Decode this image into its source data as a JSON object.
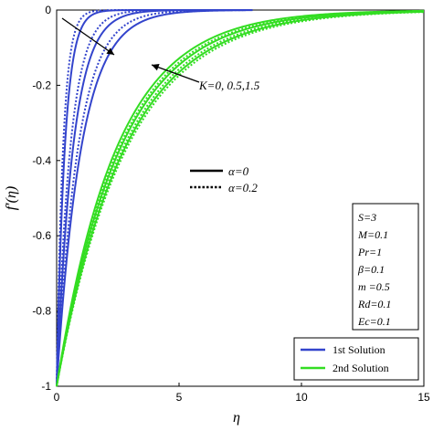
{
  "chart_data": {
    "type": "line",
    "xlabel": "η",
    "ylabel": "f′(η)",
    "xlim": [
      0,
      15
    ],
    "ylim": [
      -1,
      0
    ],
    "xticks": [
      "0",
      "5",
      "10",
      "15"
    ],
    "yticks": [
      "0",
      "-0.2",
      "-0.4",
      "-0.6",
      "-0.8",
      "-1"
    ],
    "grid": false,
    "legend_position": "bottom-right",
    "legend": [
      {
        "label": "1st Solution",
        "color": "#3344cc"
      },
      {
        "label": "2nd Solution",
        "color": "#33dd22"
      }
    ],
    "style_legend": [
      {
        "label": "α=0",
        "dash": "solid"
      },
      {
        "label": "α=0.2",
        "dash": "dotted"
      }
    ],
    "annotation": "K=0, 0.5,1.5",
    "params": [
      "S=3",
      "M=0.1",
      "Pr=1",
      "β=0.1",
      "m =0.5",
      "Rd=0.1",
      "Ec=0.1"
    ],
    "series": [
      {
        "solution": "1st",
        "alpha": 0,
        "K": 0,
        "decay": 1.0,
        "color": "#3344cc",
        "dash": "solid"
      },
      {
        "solution": "1st",
        "alpha": 0,
        "K": 0.5,
        "decay": 1.5,
        "color": "#3344cc",
        "dash": "solid"
      },
      {
        "solution": "1st",
        "alpha": 0,
        "K": 1.5,
        "decay": 3.0,
        "color": "#3344cc",
        "dash": "solid"
      },
      {
        "solution": "1st",
        "alpha": 0.2,
        "K": 0,
        "decay": 1.15,
        "color": "#3344cc",
        "dash": "dotted"
      },
      {
        "solution": "1st",
        "alpha": 0.2,
        "K": 0.5,
        "decay": 1.8,
        "color": "#3344cc",
        "dash": "dotted"
      },
      {
        "solution": "1st",
        "alpha": 0.2,
        "K": 1.5,
        "decay": 3.8,
        "color": "#3344cc",
        "dash": "dotted"
      },
      {
        "solution": "2nd",
        "alpha": 0,
        "K": 0,
        "decay": 0.36,
        "color": "#33dd22",
        "dash": "solid"
      },
      {
        "solution": "2nd",
        "alpha": 0,
        "K": 0.5,
        "decay": 0.385,
        "color": "#33dd22",
        "dash": "solid"
      },
      {
        "solution": "2nd",
        "alpha": 0,
        "K": 1.5,
        "decay": 0.41,
        "color": "#33dd22",
        "dash": "solid"
      },
      {
        "solution": "2nd",
        "alpha": 0.2,
        "K": 0,
        "decay": 0.35,
        "color": "#33dd22",
        "dash": "dotted"
      },
      {
        "solution": "2nd",
        "alpha": 0.2,
        "K": 0.5,
        "decay": 0.37,
        "color": "#33dd22",
        "dash": "dotted"
      },
      {
        "solution": "2nd",
        "alpha": 0.2,
        "K": 1.5,
        "decay": 0.395,
        "color": "#33dd22",
        "dash": "dotted"
      }
    ]
  }
}
